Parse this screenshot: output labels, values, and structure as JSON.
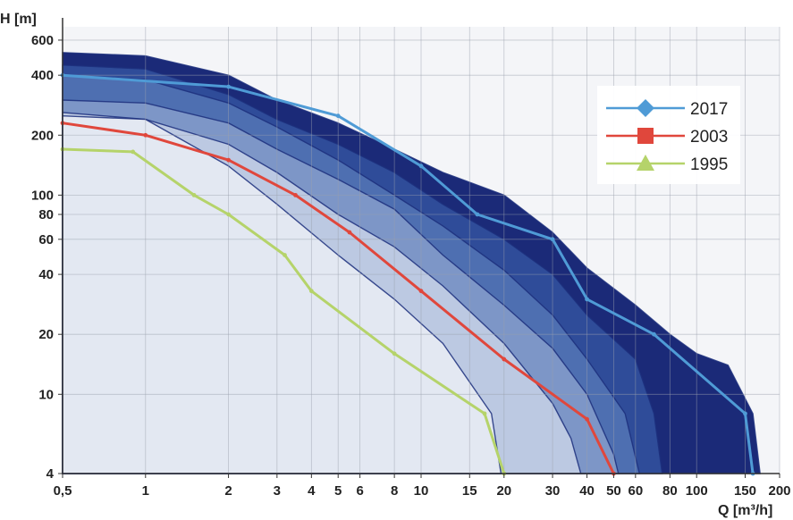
{
  "chart_data": {
    "type": "line",
    "title": "",
    "xlabel": "Q [m³/h]",
    "ylabel": "H [m]",
    "x_scale": "log",
    "y_scale": "log",
    "xlim": [
      0.5,
      200
    ],
    "ylim": [
      4,
      700
    ],
    "grid": true,
    "legend_position": "top-right",
    "x_ticks": [
      0.5,
      1,
      2,
      3,
      4,
      5,
      6,
      8,
      10,
      15,
      20,
      30,
      40,
      50,
      60,
      80,
      100,
      150,
      200
    ],
    "x_tick_labels": [
      "0,5",
      "1",
      "2",
      "3",
      "4",
      "5",
      "6",
      "8",
      "10",
      "15",
      "20",
      "30",
      "40",
      "50",
      "60",
      "80",
      "100",
      "150",
      "200"
    ],
    "y_ticks": [
      4,
      10,
      20,
      40,
      60,
      80,
      100,
      200,
      400,
      600
    ],
    "y_tick_labels": [
      "4",
      "10",
      "20",
      "40",
      "60",
      "80",
      "100",
      "200",
      "400",
      "600"
    ],
    "series": [
      {
        "name": "2017",
        "color": "#4f9bd6",
        "marker": "diamond",
        "x": [
          0.5,
          2,
          5,
          10,
          16,
          30,
          40,
          70,
          150,
          160
        ],
        "y": [
          400,
          350,
          250,
          140,
          80,
          60,
          30,
          20,
          8,
          4
        ]
      },
      {
        "name": "2003",
        "color": "#e0473c",
        "marker": "square",
        "x": [
          0.5,
          1,
          2,
          3.5,
          5.5,
          10,
          20,
          40,
          50
        ],
        "y": [
          230,
          200,
          150,
          100,
          65,
          33,
          15,
          7.5,
          4
        ]
      },
      {
        "name": "1995",
        "color": "#b5d36a",
        "marker": "triangle",
        "x": [
          0.5,
          0.9,
          1.5,
          2,
          3.2,
          4,
          8,
          17,
          20
        ],
        "y": [
          170,
          165,
          100,
          80,
          50,
          33,
          16,
          8,
          4
        ]
      }
    ],
    "envelopes": [
      {
        "color": "#1b2a78",
        "x": [
          0.5,
          1,
          2,
          3,
          5,
          8,
          12,
          20,
          30,
          40,
          60,
          80,
          100,
          130,
          160,
          170
        ],
        "y": [
          520,
          500,
          400,
          300,
          230,
          170,
          130,
          100,
          65,
          43,
          28,
          20,
          16,
          14,
          8,
          4
        ]
      },
      {
        "color": "#2f4c99",
        "x": [
          0.5,
          1,
          2,
          3,
          5,
          8,
          12,
          20,
          30,
          40,
          60,
          70,
          75
        ],
        "y": [
          450,
          430,
          320,
          240,
          180,
          130,
          90,
          60,
          40,
          25,
          15,
          8,
          4
        ]
      },
      {
        "color": "#4e6fb1",
        "x": [
          0.5,
          1,
          2,
          3,
          5,
          8,
          12,
          20,
          30,
          40,
          55,
          62
        ],
        "y": [
          400,
          380,
          290,
          220,
          150,
          100,
          70,
          42,
          25,
          15,
          8,
          4
        ]
      },
      {
        "color": "#7d96c7",
        "x": [
          0.5,
          1,
          2,
          3,
          5,
          8,
          12,
          20,
          30,
          40,
          50,
          52
        ],
        "y": [
          300,
          290,
          230,
          170,
          120,
          85,
          50,
          28,
          17,
          10,
          5,
          4
        ]
      },
      {
        "color": "#bcc9e2",
        "x": [
          0.5,
          1,
          2,
          3,
          5,
          8,
          12,
          20,
          30,
          35,
          38
        ],
        "y": [
          260,
          240,
          180,
          130,
          80,
          55,
          35,
          18,
          9,
          6,
          4
        ]
      },
      {
        "color": "#e3e8f2",
        "x": [
          0.5,
          1,
          2,
          3,
          5,
          8,
          12,
          18,
          19.5
        ],
        "y": [
          250,
          240,
          140,
          90,
          50,
          30,
          18,
          8,
          4
        ]
      }
    ]
  }
}
